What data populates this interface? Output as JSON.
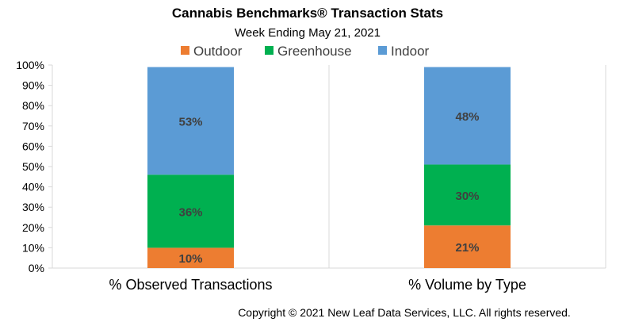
{
  "chart_data": {
    "type": "bar",
    "stacked": true,
    "title": "Cannabis Benchmarks® Transaction Stats",
    "subtitle": "Week Ending May 21, 2021",
    "categories": [
      "% Observed Transactions",
      "% Volume by Type"
    ],
    "y_ticks": [
      "0%",
      "10%",
      "20%",
      "30%",
      "40%",
      "50%",
      "60%",
      "70%",
      "80%",
      "90%",
      "100%"
    ],
    "ylim": [
      0,
      100
    ],
    "grid": "vertical separators between categories",
    "legend": {
      "position": "top",
      "items": [
        {
          "name": "Outdoor",
          "color": "#ED7D31"
        },
        {
          "name": "Greenhouse",
          "color": "#00B050"
        },
        {
          "name": "Indoor",
          "color": "#5B9BD5"
        }
      ]
    },
    "series": [
      {
        "name": "Outdoor",
        "color": "#ED7D31",
        "values": [
          10,
          21
        ],
        "labels": [
          "10%",
          "21%"
        ]
      },
      {
        "name": "Greenhouse",
        "color": "#00B050",
        "values": [
          36,
          30
        ],
        "labels": [
          "36%",
          "30%"
        ]
      },
      {
        "name": "Indoor",
        "color": "#5B9BD5",
        "values": [
          53,
          48
        ],
        "labels": [
          "53%",
          "48%"
        ]
      }
    ],
    "copyright": "Copyright © 2021 New Leaf Data Services, LLC. All rights reserved."
  }
}
